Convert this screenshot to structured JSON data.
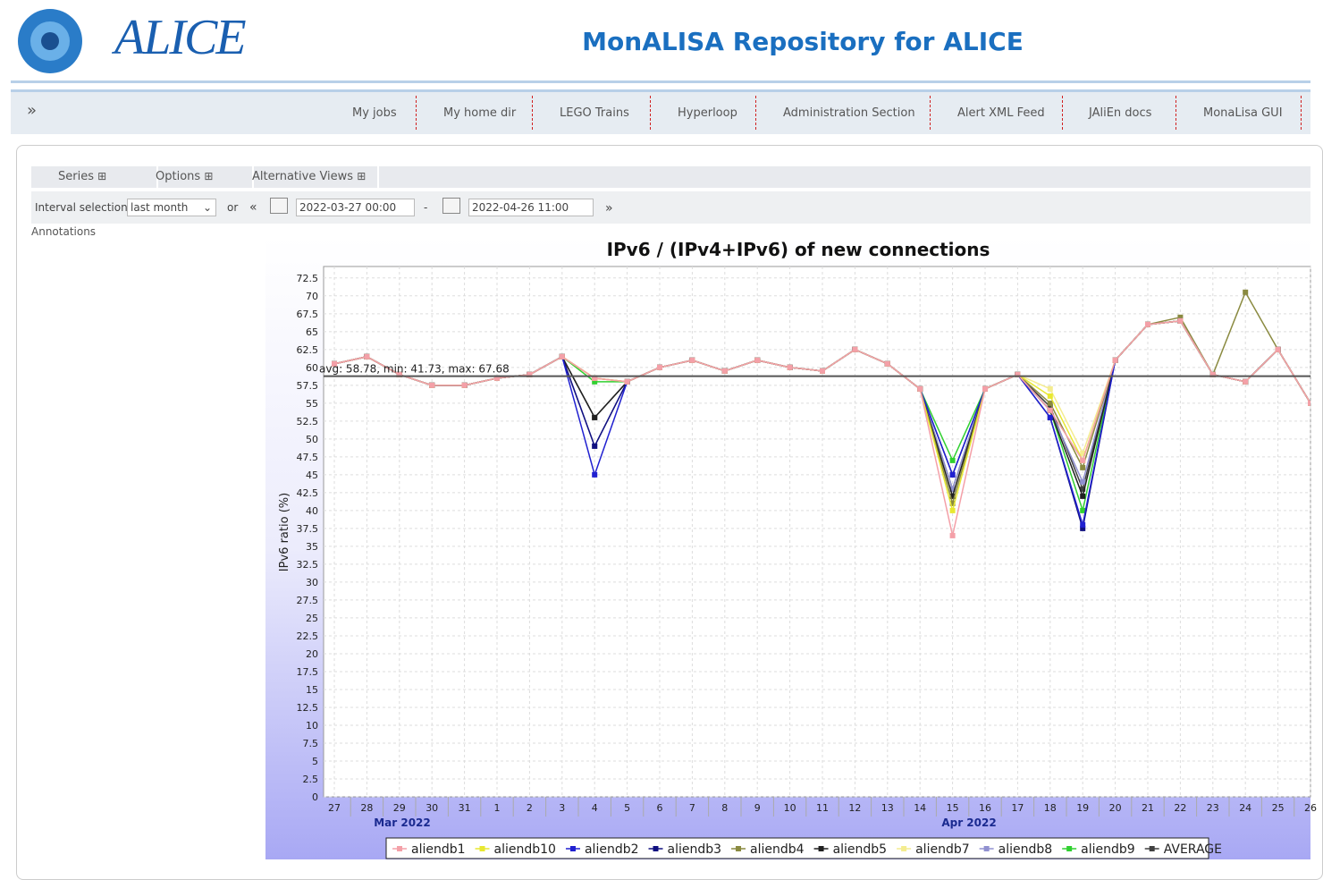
{
  "header": {
    "logo_text": "ALICE",
    "title": "MonALISA Repository for ALICE"
  },
  "nav": {
    "toggle": "»",
    "items": [
      "My jobs",
      "My home dir",
      "LEGO Trains",
      "Hyperloop",
      "Administration Section",
      "Alert XML Feed",
      "JAliEn docs",
      "MonaLisa GUI"
    ]
  },
  "tabs": [
    "Series",
    "Options",
    "Alternative Views"
  ],
  "interval": {
    "label": "Interval selection:",
    "selected": "last month",
    "or": "or",
    "prev": "«",
    "from": "2022-03-27 00:00",
    "dash": "-",
    "to": "2022-04-26 11:00",
    "next": "»"
  },
  "annotations_link": "Annotations",
  "chart_data": {
    "type": "line",
    "title": "IPv6 / (IPv4+IPv6) of new connections",
    "y_label": "IPv6 ratio (%)",
    "annotation": "avg: 58.78, min: 41.73, max: 67.68",
    "avg_line": 58.78,
    "categories": [
      "27",
      "28",
      "29",
      "30",
      "31",
      "1",
      "2",
      "3",
      "4",
      "5",
      "6",
      "7",
      "8",
      "9",
      "10",
      "11",
      "12",
      "13",
      "14",
      "15",
      "16",
      "17",
      "18",
      "19",
      "20",
      "21",
      "22",
      "23",
      "24",
      "25",
      "26"
    ],
    "x_groups": [
      "Mar 2022",
      "Apr 2022"
    ],
    "ylim": [
      0,
      74.1
    ],
    "yticks": [
      0,
      2.5,
      5,
      7.5,
      10,
      12.5,
      15,
      17.5,
      20,
      22.5,
      25,
      27.5,
      30,
      32.5,
      35,
      37.5,
      40,
      42.5,
      45,
      47.5,
      50,
      52.5,
      55,
      57.5,
      60,
      62.5,
      65,
      67.5,
      70,
      72.5
    ],
    "grid": true,
    "series": [
      {
        "name": "aliendb1",
        "color": "#f4a0a8",
        "values": [
          60.5,
          61.5,
          59,
          57.5,
          57.5,
          58.5,
          59,
          61.5,
          58.5,
          58,
          60,
          61,
          59.5,
          61,
          60,
          59.5,
          62.5,
          60.5,
          57,
          36.5,
          57,
          59,
          54,
          47,
          61,
          66,
          66.5,
          59,
          58,
          62.5,
          55
        ]
      },
      {
        "name": "aliendb10",
        "color": "#e8e830",
        "values": [
          60.5,
          61.5,
          59,
          57.5,
          57.5,
          58.5,
          59,
          61.5,
          58.5,
          58,
          60,
          61,
          59.5,
          61,
          60,
          59.5,
          62.5,
          60.5,
          57,
          40,
          57,
          59,
          56,
          47,
          61,
          66,
          66.5,
          59,
          58,
          62.5,
          55
        ]
      },
      {
        "name": "aliendb2",
        "color": "#2020d0",
        "values": [
          60.5,
          61.5,
          59,
          57.5,
          57.5,
          58.5,
          59,
          61.5,
          45,
          58,
          60,
          61,
          59.5,
          61,
          60,
          59.5,
          62.5,
          60.5,
          57,
          45,
          57,
          59,
          53,
          38,
          61,
          66,
          66.5,
          59,
          58,
          62.5,
          55
        ]
      },
      {
        "name": "aliendb3",
        "color": "#101080",
        "values": [
          60.5,
          61.5,
          59,
          57.5,
          57.5,
          58.5,
          59,
          61.5,
          49,
          58,
          60,
          61,
          59.5,
          61,
          60,
          59.5,
          62.5,
          60.5,
          57,
          45,
          57,
          59,
          53,
          37.5,
          61,
          66,
          66.5,
          59,
          58,
          62.5,
          55
        ]
      },
      {
        "name": "aliendb4",
        "color": "#8a8a40",
        "values": [
          60.5,
          61.5,
          59,
          57.5,
          57.5,
          58.5,
          59,
          61.5,
          58.5,
          58,
          60,
          61,
          59.5,
          61,
          60,
          59.5,
          62.5,
          60.5,
          57,
          41,
          57,
          59,
          55,
          46,
          61,
          66,
          67,
          59,
          70.5,
          62.5,
          55
        ]
      },
      {
        "name": "aliendb5",
        "color": "#202020",
        "values": [
          60.5,
          61.5,
          59,
          57.5,
          57.5,
          58.5,
          59,
          61.5,
          53,
          58,
          60,
          61,
          59.5,
          61,
          60,
          59.5,
          62.5,
          60.5,
          57,
          42,
          57,
          59,
          54,
          42,
          61,
          66,
          66.5,
          59,
          58,
          62.5,
          55
        ]
      },
      {
        "name": "aliendb7",
        "color": "#f4ec90",
        "values": [
          60.5,
          61.5,
          59,
          57.5,
          57.5,
          58.5,
          59,
          61.5,
          58.5,
          58,
          60,
          61,
          59.5,
          61,
          60,
          59.5,
          62.5,
          60.5,
          57,
          41,
          57,
          59,
          57,
          48,
          61,
          66,
          66.5,
          59,
          58,
          62.5,
          55
        ]
      },
      {
        "name": "aliendb8",
        "color": "#9090d0",
        "values": [
          60.5,
          61.5,
          59,
          57.5,
          57.5,
          58.5,
          59,
          61.5,
          49,
          58,
          60,
          61,
          59.5,
          61,
          60,
          59.5,
          62.5,
          60.5,
          57,
          43,
          57,
          59,
          54,
          44,
          61,
          66,
          66.5,
          59,
          58,
          62.5,
          55
        ]
      },
      {
        "name": "aliendb9",
        "color": "#30d030",
        "values": [
          60.5,
          61.5,
          59,
          57.5,
          57.5,
          58.5,
          59,
          61.5,
          58,
          58,
          60,
          61,
          59.5,
          61,
          60,
          59.5,
          62.5,
          60.5,
          57,
          47,
          57,
          59,
          54,
          40,
          61,
          66,
          66.5,
          59,
          58,
          62.5,
          55
        ]
      },
      {
        "name": "AVERAGE",
        "color": "#404040",
        "values": [
          60.5,
          61.5,
          59,
          57.5,
          57.5,
          58.5,
          59,
          61.5,
          53,
          58,
          60,
          61,
          59.5,
          61,
          60,
          59.5,
          62.5,
          60.5,
          57,
          43,
          57,
          59,
          54.5,
          43,
          61,
          66,
          66.5,
          59,
          58,
          62.5,
          55
        ]
      }
    ]
  }
}
